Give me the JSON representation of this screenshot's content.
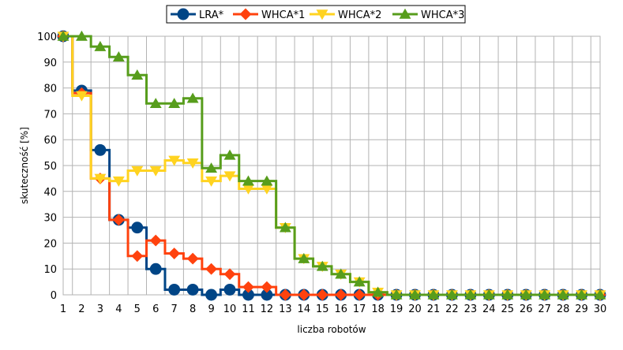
{
  "chart_data": {
    "type": "line",
    "step": true,
    "xlabel": "liczba robotów",
    "ylabel": "skuteczność [%]",
    "x": [
      1,
      2,
      3,
      4,
      5,
      6,
      7,
      8,
      9,
      10,
      11,
      12,
      13,
      14,
      15,
      16,
      17,
      18,
      19,
      20,
      21,
      22,
      23,
      24,
      25,
      26,
      27,
      28,
      29,
      30
    ],
    "xlim": [
      1,
      30
    ],
    "ylim": [
      0,
      100
    ],
    "yticks": [
      0,
      10,
      20,
      30,
      40,
      50,
      60,
      70,
      80,
      90,
      100
    ],
    "grid": true,
    "legend_position": "top-center",
    "series": [
      {
        "name": "LRA*",
        "color": "#004586",
        "marker": "circle",
        "values": [
          100,
          79,
          56,
          29,
          26,
          10,
          2,
          2,
          0,
          2,
          0,
          0,
          0,
          0,
          0,
          0,
          0,
          0,
          0,
          0,
          0,
          0,
          0,
          0,
          0,
          0,
          0,
          0,
          0,
          0
        ]
      },
      {
        "name": "WHCA*1",
        "color": "#ff420e",
        "marker": "diamond",
        "values": [
          100,
          78,
          45,
          29,
          15,
          21,
          16,
          14,
          10,
          8,
          3,
          3,
          0,
          0,
          0,
          0,
          0,
          0,
          0,
          0,
          0,
          0,
          0,
          0,
          0,
          0,
          0,
          0,
          0,
          0
        ]
      },
      {
        "name": "WHCA*2",
        "color": "#ffd320",
        "marker": "triangle-down",
        "values": [
          100,
          77,
          45,
          44,
          48,
          48,
          52,
          51,
          44,
          46,
          41,
          41,
          26,
          14,
          11,
          8,
          5,
          1,
          0,
          0,
          0,
          0,
          0,
          0,
          0,
          0,
          0,
          0,
          0,
          0
        ]
      },
      {
        "name": "WHCA*3",
        "color": "#579d1c",
        "marker": "triangle-up",
        "values": [
          100,
          100,
          96,
          92,
          85,
          74,
          74,
          76,
          49,
          54,
          44,
          44,
          26,
          14,
          11,
          8,
          5,
          1,
          0,
          0,
          0,
          0,
          0,
          0,
          0,
          0,
          0,
          0,
          0,
          0
        ]
      }
    ]
  }
}
